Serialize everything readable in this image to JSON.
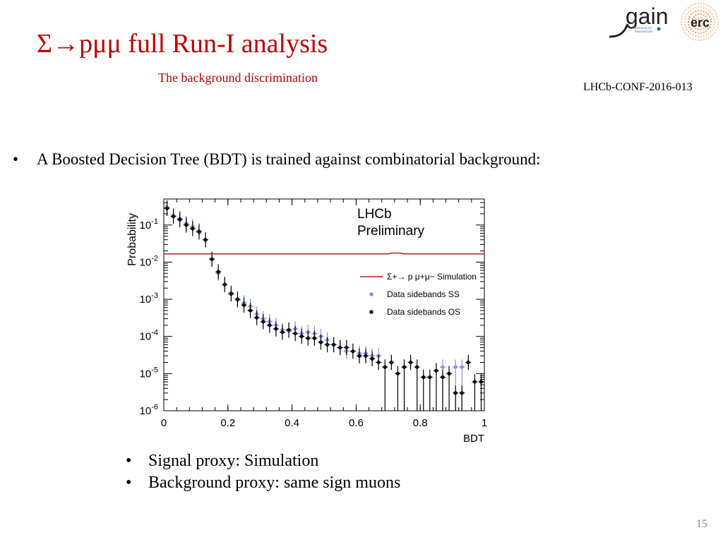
{
  "slide": {
    "title": "Σ→pμμ full Run-I analysis",
    "subtitle": "The background discrimination",
    "reference": "LHCb-CONF-2016-013",
    "bullet_main": "A Boosted Decision Tree (BDT)  is trained against combinatorial background:",
    "bullets": [
      "Signal proxy: Simulation",
      "Background proxy: same sign muons"
    ],
    "page_number": "15",
    "bullet_char": "•"
  },
  "logo": {
    "text_gain": "gain",
    "text_erc": "erc",
    "tagline_1": "AXENCIA DE",
    "tagline_2": "INNOVACIÓN"
  },
  "colors": {
    "title": "#c00000",
    "simulation": "#b22222",
    "data_ss": "#8c8cf0",
    "data_os": "#000000"
  },
  "chart_data": {
    "type": "scatter",
    "xlabel": "BDT",
    "ylabel": "Probability",
    "xlim": [
      0,
      1
    ],
    "ylim": [
      1e-06,
      0.5
    ],
    "log_y": true,
    "xticks": [
      0,
      0.2,
      0.4,
      0.6,
      0.8,
      1
    ],
    "xtick_labels": [
      "0",
      "0.2",
      "0.4",
      "0.6",
      "0.8",
      "1"
    ],
    "yticks": [
      1e-06,
      1e-05,
      0.0001,
      0.001,
      0.01,
      0.1
    ],
    "ytick_labels": [
      "10^-6",
      "10^-5",
      "10^-4",
      "10^-3",
      "10^-2",
      "10^-1"
    ],
    "annotation": [
      "LHCb",
      "Preliminary"
    ],
    "legend_position": "top-right",
    "series": [
      {
        "name": "Σ+→ p μ+μ− Simulation",
        "style": "line",
        "color": "#b22222",
        "x": [
          0,
          0.7,
          0.71,
          0.74,
          0.75,
          1
        ],
        "y": [
          0.0167,
          0.0167,
          0.0175,
          0.0175,
          0.0167,
          0.0167
        ]
      },
      {
        "name": "Data sidebands SS",
        "style": "points",
        "color": "#8c8cf0",
        "x": [
          0.01,
          0.03,
          0.05,
          0.07,
          0.09,
          0.11,
          0.13,
          0.15,
          0.17,
          0.19,
          0.21,
          0.23,
          0.25,
          0.27,
          0.29,
          0.31,
          0.33,
          0.35,
          0.37,
          0.39,
          0.41,
          0.43,
          0.45,
          0.47,
          0.49,
          0.51,
          0.53,
          0.55,
          0.57,
          0.59,
          0.61,
          0.63,
          0.65,
          0.67,
          0.71,
          0.75,
          0.87,
          0.91,
          0.93
        ],
        "y": [
          0.3,
          0.18,
          0.15,
          0.11,
          0.09,
          0.07,
          0.04,
          0.012,
          0.005,
          0.0025,
          0.0015,
          0.00095,
          0.0008,
          0.00065,
          0.0004,
          0.0003,
          0.00025,
          0.0002,
          0.00015,
          0.00014,
          0.00016,
          0.00012,
          0.00013,
          0.00012,
          0.0001,
          8e-05,
          6e-05,
          5e-05,
          4e-05,
          4e-05,
          3.5e-05,
          3.5e-05,
          3e-05,
          3e-05,
          2e-05,
          1.5e-05,
          1.5e-05,
          1.5e-05,
          1.5e-05
        ]
      },
      {
        "name": "Data sidebands OS",
        "style": "points",
        "color": "#000000",
        "x": [
          0.01,
          0.03,
          0.05,
          0.07,
          0.09,
          0.11,
          0.13,
          0.15,
          0.17,
          0.19,
          0.21,
          0.23,
          0.25,
          0.27,
          0.29,
          0.31,
          0.33,
          0.35,
          0.37,
          0.39,
          0.41,
          0.43,
          0.45,
          0.47,
          0.49,
          0.51,
          0.53,
          0.55,
          0.57,
          0.59,
          0.61,
          0.63,
          0.65,
          0.67,
          0.69,
          0.71,
          0.73,
          0.75,
          0.77,
          0.79,
          0.81,
          0.83,
          0.85,
          0.87,
          0.89,
          0.91,
          0.93,
          0.95,
          0.97,
          0.99
        ],
        "y": [
          0.28,
          0.17,
          0.14,
          0.1,
          0.08,
          0.065,
          0.04,
          0.012,
          0.0055,
          0.0025,
          0.0014,
          0.001,
          0.0007,
          0.0005,
          0.00032,
          0.00025,
          0.0002,
          0.00016,
          0.00013,
          0.00015,
          0.00012,
          0.0001,
          9e-05,
          9e-05,
          7e-05,
          6e-05,
          6e-05,
          5e-05,
          5e-05,
          4e-05,
          3e-05,
          3e-05,
          2.5e-05,
          2e-05,
          1.5e-05,
          2e-05,
          1e-05,
          1.5e-05,
          2e-05,
          1.5e-05,
          8e-06,
          8e-06,
          1.2e-05,
          8e-06,
          1e-05,
          3e-06,
          3e-06,
          2e-05,
          6e-06,
          6e-06
        ]
      }
    ]
  }
}
